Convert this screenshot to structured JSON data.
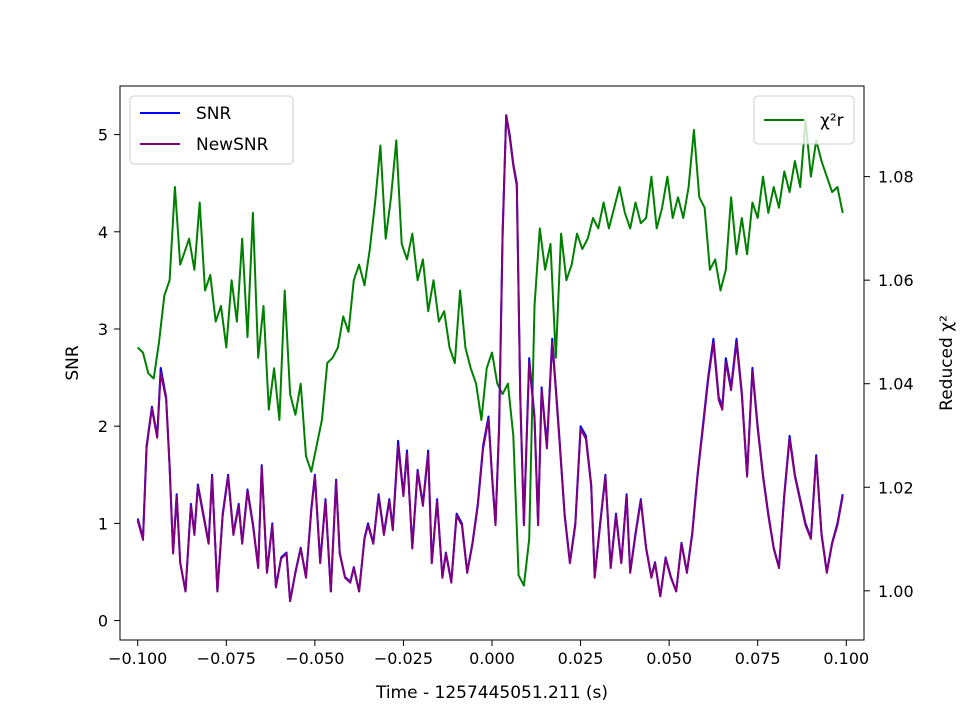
{
  "chart_data": {
    "type": "line",
    "xlabel": "Time - 1257445051.211 (s)",
    "ylabel": "SNR",
    "y2label": "Reduced χ²",
    "xlim": [
      -0.105,
      0.105
    ],
    "ylim": [
      -0.2,
      5.5
    ],
    "y2lim": [
      0.9905,
      1.0975
    ],
    "xticks": [
      -0.1,
      -0.075,
      -0.05,
      -0.025,
      0.0,
      0.025,
      0.05,
      0.075,
      0.1
    ],
    "xtick_labels": [
      "−0.100",
      "−0.075",
      "−0.050",
      "−0.025",
      "0.000",
      "0.025",
      "0.050",
      "0.075",
      "0.100"
    ],
    "yticks": [
      0,
      1,
      2,
      3,
      4,
      5
    ],
    "ytick_labels": [
      "0",
      "1",
      "2",
      "3",
      "4",
      "5"
    ],
    "y2ticks": [
      1.0,
      1.02,
      1.04,
      1.06,
      1.08
    ],
    "y2tick_labels": [
      "1.00",
      "1.02",
      "1.04",
      "1.06",
      "1.08"
    ],
    "grid": false,
    "legend_left": {
      "placement": "upper-left",
      "entries": [
        "SNR",
        "NewSNR"
      ]
    },
    "legend_right": {
      "placement": "upper-right",
      "entries": [
        "χ²r"
      ]
    },
    "colors": {
      "snr": "#0000ff",
      "newsnr": "#800080",
      "chisq": "#008000"
    },
    "series": [
      {
        "name": "SNR",
        "axis": "left",
        "x": [
          -0.1,
          -0.0985,
          -0.0975,
          -0.096,
          -0.0945,
          -0.0935,
          -0.092,
          -0.091,
          -0.09,
          -0.089,
          -0.088,
          -0.0865,
          -0.085,
          -0.084,
          -0.083,
          -0.0815,
          -0.08,
          -0.079,
          -0.0775,
          -0.076,
          -0.0745,
          -0.073,
          -0.0715,
          -0.0705,
          -0.069,
          -0.0675,
          -0.066,
          -0.065,
          -0.0635,
          -0.062,
          -0.061,
          -0.0595,
          -0.058,
          -0.057,
          -0.0555,
          -0.054,
          -0.0525,
          -0.051,
          -0.05,
          -0.0485,
          -0.047,
          -0.0455,
          -0.044,
          -0.043,
          -0.0415,
          -0.04,
          -0.039,
          -0.0375,
          -0.036,
          -0.035,
          -0.0335,
          -0.032,
          -0.0305,
          -0.029,
          -0.028,
          -0.0265,
          -0.025,
          -0.024,
          -0.0225,
          -0.021,
          -0.0195,
          -0.018,
          -0.017,
          -0.0155,
          -0.014,
          -0.013,
          -0.0115,
          -0.01,
          -0.0085,
          -0.007,
          -0.0055,
          -0.004,
          -0.0025,
          -0.001,
          0.0,
          0.001,
          0.002,
          0.003,
          0.004,
          0.005,
          0.006,
          0.007,
          0.008,
          0.009,
          0.0105,
          0.012,
          0.013,
          0.014,
          0.0155,
          0.017,
          0.018,
          0.019,
          0.0205,
          0.022,
          0.0235,
          0.025,
          0.0265,
          0.028,
          0.029,
          0.0305,
          0.032,
          0.0335,
          0.035,
          0.0365,
          0.038,
          0.039,
          0.0405,
          0.042,
          0.0435,
          0.045,
          0.046,
          0.0475,
          0.049,
          0.0505,
          0.052,
          0.0535,
          0.055,
          0.0565,
          0.058,
          0.0595,
          0.061,
          0.0625,
          0.064,
          0.065,
          0.066,
          0.0675,
          0.069,
          0.0705,
          0.072,
          0.0735,
          0.075,
          0.0765,
          0.078,
          0.0795,
          0.081,
          0.0825,
          0.084,
          0.0855,
          0.087,
          0.0885,
          0.09,
          0.0915,
          0.093,
          0.0945,
          0.096,
          0.0975,
          0.099
        ],
        "y": [
          1.05,
          0.85,
          1.8,
          2.2,
          1.9,
          2.6,
          2.3,
          1.6,
          0.7,
          1.3,
          0.6,
          0.3,
          1.2,
          0.9,
          1.4,
          1.1,
          0.8,
          1.5,
          0.3,
          1.1,
          1.5,
          0.9,
          1.2,
          0.8,
          1.35,
          1.0,
          0.55,
          1.6,
          0.5,
          1.0,
          0.35,
          0.65,
          0.7,
          0.2,
          0.5,
          0.75,
          0.45,
          1.15,
          1.5,
          0.6,
          1.25,
          0.3,
          1.45,
          0.7,
          0.45,
          0.4,
          0.55,
          0.3,
          0.85,
          1.0,
          0.8,
          1.3,
          0.9,
          1.25,
          0.95,
          1.85,
          1.3,
          1.75,
          0.75,
          1.55,
          1.2,
          1.75,
          0.6,
          1.25,
          0.45,
          0.7,
          0.4,
          1.1,
          1.0,
          0.5,
          0.8,
          1.2,
          1.8,
          2.1,
          1.5,
          1.0,
          2.0,
          4.0,
          5.2,
          5.0,
          4.7,
          4.5,
          2.3,
          1.0,
          2.7,
          2.1,
          1.0,
          2.4,
          1.8,
          2.9,
          2.4,
          1.9,
          1.1,
          0.6,
          1.0,
          2.0,
          1.9,
          1.4,
          0.45,
          1.0,
          1.5,
          0.55,
          1.1,
          0.6,
          1.3,
          0.5,
          0.9,
          1.25,
          0.75,
          0.45,
          0.6,
          0.25,
          0.65,
          0.45,
          0.3,
          0.8,
          0.5,
          0.9,
          1.5,
          2.0,
          2.5,
          2.9,
          2.3,
          2.2,
          2.7,
          2.4,
          2.9,
          2.35,
          1.5,
          2.6,
          2.0,
          1.5,
          1.1,
          0.75,
          0.55,
          1.3,
          1.9,
          1.5,
          1.25,
          1.0,
          0.85,
          1.7,
          0.9,
          0.5,
          0.8,
          1.0,
          1.3
        ]
      },
      {
        "name": "NewSNR",
        "axis": "left",
        "x": [
          -0.1,
          -0.0985,
          -0.0975,
          -0.096,
          -0.0945,
          -0.0935,
          -0.092,
          -0.091,
          -0.09,
          -0.089,
          -0.088,
          -0.0865,
          -0.085,
          -0.084,
          -0.083,
          -0.0815,
          -0.08,
          -0.079,
          -0.0775,
          -0.076,
          -0.0745,
          -0.073,
          -0.0715,
          -0.0705,
          -0.069,
          -0.0675,
          -0.066,
          -0.065,
          -0.0635,
          -0.062,
          -0.061,
          -0.0595,
          -0.058,
          -0.057,
          -0.0555,
          -0.054,
          -0.0525,
          -0.051,
          -0.05,
          -0.0485,
          -0.047,
          -0.0455,
          -0.044,
          -0.043,
          -0.0415,
          -0.04,
          -0.039,
          -0.0375,
          -0.036,
          -0.035,
          -0.0335,
          -0.032,
          -0.0305,
          -0.029,
          -0.028,
          -0.0265,
          -0.025,
          -0.024,
          -0.0225,
          -0.021,
          -0.0195,
          -0.018,
          -0.017,
          -0.0155,
          -0.014,
          -0.013,
          -0.0115,
          -0.01,
          -0.0085,
          -0.007,
          -0.0055,
          -0.004,
          -0.0025,
          -0.001,
          0.0,
          0.001,
          0.002,
          0.003,
          0.004,
          0.005,
          0.006,
          0.007,
          0.008,
          0.009,
          0.0105,
          0.012,
          0.013,
          0.014,
          0.0155,
          0.017,
          0.018,
          0.019,
          0.0205,
          0.022,
          0.0235,
          0.025,
          0.0265,
          0.028,
          0.029,
          0.0305,
          0.032,
          0.0335,
          0.035,
          0.0365,
          0.038,
          0.039,
          0.0405,
          0.042,
          0.0435,
          0.045,
          0.046,
          0.0475,
          0.049,
          0.0505,
          0.052,
          0.0535,
          0.055,
          0.0565,
          0.058,
          0.0595,
          0.061,
          0.0625,
          0.064,
          0.065,
          0.066,
          0.0675,
          0.069,
          0.0705,
          0.072,
          0.0735,
          0.075,
          0.0765,
          0.078,
          0.0795,
          0.081,
          0.0825,
          0.084,
          0.0855,
          0.087,
          0.0885,
          0.09,
          0.0915,
          0.093,
          0.0945,
          0.096,
          0.0975,
          0.099
        ],
        "y": [
          1.03,
          0.83,
          1.78,
          2.18,
          1.88,
          2.55,
          2.28,
          1.58,
          0.69,
          1.28,
          0.59,
          0.3,
          1.18,
          0.88,
          1.38,
          1.08,
          0.79,
          1.48,
          0.3,
          1.08,
          1.48,
          0.88,
          1.18,
          0.79,
          1.33,
          0.98,
          0.54,
          1.58,
          0.49,
          0.98,
          0.34,
          0.64,
          0.69,
          0.2,
          0.49,
          0.74,
          0.44,
          1.13,
          1.48,
          0.59,
          1.23,
          0.3,
          1.43,
          0.69,
          0.44,
          0.39,
          0.54,
          0.3,
          0.84,
          0.98,
          0.79,
          1.28,
          0.88,
          1.23,
          0.93,
          1.8,
          1.28,
          1.72,
          0.74,
          1.53,
          1.18,
          1.72,
          0.59,
          1.23,
          0.44,
          0.69,
          0.39,
          1.08,
          0.98,
          0.49,
          0.79,
          1.18,
          1.77,
          2.07,
          1.48,
          0.98,
          1.97,
          3.95,
          5.2,
          4.97,
          4.68,
          4.47,
          2.27,
          0.98,
          2.66,
          2.07,
          0.98,
          2.37,
          1.77,
          2.86,
          2.37,
          1.87,
          1.08,
          0.59,
          0.98,
          1.97,
          1.87,
          1.38,
          0.44,
          0.98,
          1.48,
          0.54,
          1.08,
          0.59,
          1.28,
          0.49,
          0.88,
          1.23,
          0.74,
          0.44,
          0.59,
          0.25,
          0.64,
          0.44,
          0.3,
          0.79,
          0.49,
          0.88,
          1.48,
          1.97,
          2.47,
          2.86,
          2.27,
          2.17,
          2.66,
          2.37,
          2.86,
          2.32,
          1.48,
          2.57,
          1.97,
          1.48,
          1.08,
          0.74,
          0.54,
          1.28,
          1.87,
          1.48,
          1.23,
          0.98,
          0.84,
          1.68,
          0.88,
          0.49,
          0.79,
          0.98,
          1.28
        ]
      },
      {
        "name": "χ²r",
        "axis": "right",
        "x": [
          -0.1,
          -0.0985,
          -0.097,
          -0.0955,
          -0.094,
          -0.0925,
          -0.091,
          -0.0895,
          -0.088,
          -0.087,
          -0.0855,
          -0.084,
          -0.0825,
          -0.081,
          -0.0795,
          -0.078,
          -0.0765,
          -0.075,
          -0.0735,
          -0.072,
          -0.0705,
          -0.069,
          -0.0675,
          -0.066,
          -0.0645,
          -0.063,
          -0.0615,
          -0.06,
          -0.0585,
          -0.057,
          -0.0555,
          -0.054,
          -0.0525,
          -0.051,
          -0.0495,
          -0.048,
          -0.0465,
          -0.045,
          -0.0435,
          -0.042,
          -0.0405,
          -0.039,
          -0.0375,
          -0.036,
          -0.0345,
          -0.033,
          -0.0315,
          -0.03,
          -0.0285,
          -0.027,
          -0.0255,
          -0.024,
          -0.0225,
          -0.021,
          -0.0195,
          -0.018,
          -0.0165,
          -0.015,
          -0.0135,
          -0.012,
          -0.0105,
          -0.009,
          -0.0075,
          -0.006,
          -0.0045,
          -0.003,
          -0.0015,
          0.0,
          0.0015,
          0.003,
          0.0045,
          0.006,
          0.0075,
          0.009,
          0.0105,
          0.012,
          0.0135,
          0.015,
          0.0165,
          0.018,
          0.0195,
          0.021,
          0.0225,
          0.024,
          0.0255,
          0.027,
          0.0285,
          0.03,
          0.0315,
          0.033,
          0.0345,
          0.036,
          0.0375,
          0.039,
          0.0405,
          0.042,
          0.0435,
          0.045,
          0.0465,
          0.048,
          0.0495,
          0.051,
          0.0525,
          0.054,
          0.0555,
          0.057,
          0.0585,
          0.06,
          0.0615,
          0.063,
          0.0645,
          0.066,
          0.0675,
          0.069,
          0.0705,
          0.072,
          0.0735,
          0.075,
          0.0765,
          0.078,
          0.0795,
          0.081,
          0.0825,
          0.084,
          0.0855,
          0.087,
          0.0885,
          0.09,
          0.0915,
          0.093,
          0.0945,
          0.096,
          0.0975,
          0.099
        ],
        "y": [
          1.047,
          1.046,
          1.042,
          1.041,
          1.048,
          1.057,
          1.06,
          1.078,
          1.063,
          1.065,
          1.068,
          1.062,
          1.075,
          1.058,
          1.061,
          1.052,
          1.055,
          1.047,
          1.06,
          1.052,
          1.068,
          1.049,
          1.073,
          1.045,
          1.055,
          1.035,
          1.043,
          1.033,
          1.058,
          1.038,
          1.034,
          1.04,
          1.026,
          1.023,
          1.028,
          1.033,
          1.044,
          1.045,
          1.047,
          1.053,
          1.05,
          1.06,
          1.063,
          1.059,
          1.066,
          1.075,
          1.086,
          1.068,
          1.076,
          1.087,
          1.067,
          1.064,
          1.069,
          1.06,
          1.064,
          1.054,
          1.06,
          1.052,
          1.054,
          1.047,
          1.044,
          1.058,
          1.047,
          1.043,
          1.04,
          1.033,
          1.043,
          1.046,
          1.04,
          1.038,
          1.04,
          1.03,
          1.003,
          1.001,
          1.01,
          1.055,
          1.07,
          1.062,
          1.067,
          1.045,
          1.069,
          1.06,
          1.063,
          1.069,
          1.066,
          1.068,
          1.072,
          1.07,
          1.075,
          1.07,
          1.074,
          1.078,
          1.073,
          1.07,
          1.075,
          1.071,
          1.072,
          1.08,
          1.07,
          1.074,
          1.08,
          1.072,
          1.076,
          1.072,
          1.078,
          1.089,
          1.076,
          1.074,
          1.062,
          1.064,
          1.058,
          1.062,
          1.076,
          1.065,
          1.072,
          1.065,
          1.075,
          1.072,
          1.08,
          1.073,
          1.078,
          1.074,
          1.081,
          1.077,
          1.083,
          1.078,
          1.091,
          1.08,
          1.087,
          1.083,
          1.08,
          1.077,
          1.078,
          1.073
        ]
      }
    ]
  }
}
